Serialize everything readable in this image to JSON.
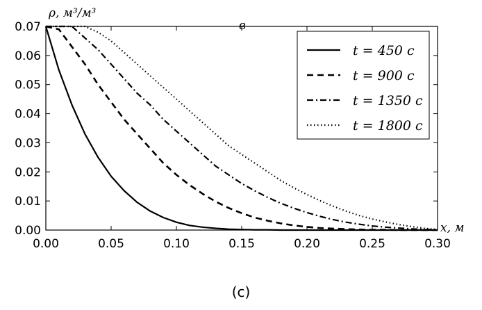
{
  "chart_data": {
    "type": "line",
    "panel_label": "в",
    "ylabel": "ρ, м³/м³",
    "xlabel": "x, м",
    "xlim": [
      0.0,
      0.3
    ],
    "ylim": [
      0.0,
      0.07
    ],
    "x_ticks": [
      "0.00",
      "0.05",
      "0.10",
      "0.15",
      "0.20",
      "0.25",
      "0.30"
    ],
    "y_ticks": [
      "0.00",
      "0.01",
      "0.02",
      "0.03",
      "0.04",
      "0.05",
      "0.06",
      "0.07"
    ],
    "grid": false,
    "legend_position": "top-right",
    "x": [
      0.0,
      0.01,
      0.02,
      0.03,
      0.04,
      0.05,
      0.06,
      0.07,
      0.08,
      0.09,
      0.1,
      0.11,
      0.12,
      0.13,
      0.14,
      0.15,
      0.16,
      0.17,
      0.18,
      0.19,
      0.2,
      0.21,
      0.22,
      0.23,
      0.24,
      0.25,
      0.26,
      0.27,
      0.28,
      0.29,
      0.3
    ],
    "series": [
      {
        "name": "t = 450 с",
        "style": "solid",
        "values": [
          0.07,
          0.055,
          0.043,
          0.033,
          0.025,
          0.0185,
          0.0135,
          0.0095,
          0.0065,
          0.0043,
          0.0027,
          0.0016,
          0.001,
          0.0006,
          0.0003,
          0.0002,
          0.0001,
          0.0001,
          0.0,
          0.0,
          0.0,
          0.0,
          0.0,
          0.0,
          0.0,
          0.0,
          0.0,
          0.0,
          0.0,
          0.0,
          0.0
        ]
      },
      {
        "name": "t = 900 с",
        "style": "dashed",
        "values": [
          0.07,
          0.069,
          0.063,
          0.057,
          0.05,
          0.044,
          0.038,
          0.033,
          0.028,
          0.023,
          0.019,
          0.0155,
          0.0125,
          0.0098,
          0.0076,
          0.0058,
          0.0043,
          0.0032,
          0.0023,
          0.0016,
          0.0011,
          0.0007,
          0.0005,
          0.0003,
          0.0002,
          0.0001,
          0.0001,
          0.0,
          0.0,
          0.0,
          0.0
        ]
      },
      {
        "name": "t = 1350 с",
        "style": "dashdot",
        "values": [
          0.07,
          0.07,
          0.07,
          0.066,
          0.062,
          0.057,
          0.052,
          0.047,
          0.043,
          0.038,
          0.034,
          0.03,
          0.026,
          0.022,
          0.019,
          0.016,
          0.0135,
          0.0112,
          0.0092,
          0.0075,
          0.006,
          0.0047,
          0.0036,
          0.0027,
          0.002,
          0.0014,
          0.001,
          0.0007,
          0.0004,
          0.0002,
          0.0001
        ]
      },
      {
        "name": "t = 1800 с",
        "style": "dotted",
        "values": [
          0.07,
          0.07,
          0.07,
          0.07,
          0.068,
          0.065,
          0.061,
          0.057,
          0.053,
          0.049,
          0.045,
          0.041,
          0.037,
          0.033,
          0.029,
          0.026,
          0.023,
          0.02,
          0.017,
          0.0145,
          0.0122,
          0.0101,
          0.0082,
          0.0065,
          0.005,
          0.0038,
          0.0028,
          0.0019,
          0.0012,
          0.0006,
          0.0002
        ]
      }
    ]
  },
  "caption": "(c)"
}
